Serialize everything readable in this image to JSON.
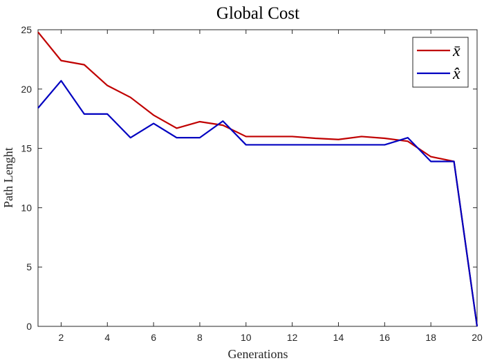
{
  "chart_data": {
    "type": "line",
    "title": "Global Cost",
    "xlabel": "Generations",
    "ylabel": "Path Lenght",
    "xlim": [
      1,
      20
    ],
    "ylim": [
      0,
      25
    ],
    "xticks": [
      2,
      4,
      6,
      8,
      10,
      12,
      14,
      16,
      18,
      20
    ],
    "yticks": [
      0,
      5,
      10,
      15,
      20,
      25
    ],
    "grid": false,
    "legend_position": "top-right",
    "x": [
      1,
      2,
      3,
      4,
      5,
      6,
      7,
      8,
      9,
      10,
      11,
      12,
      13,
      14,
      15,
      16,
      17,
      18,
      19,
      20
    ],
    "series": [
      {
        "name": "x̄",
        "color": "#c00000",
        "values": [
          24.8,
          22.4,
          22.05,
          20.3,
          19.3,
          17.8,
          16.7,
          17.25,
          16.95,
          16.0,
          16.0,
          16.0,
          15.85,
          15.75,
          16.0,
          15.85,
          15.6,
          14.3,
          13.9,
          0.0
        ]
      },
      {
        "name": "x̂",
        "color": "#0000c0",
        "values": [
          18.4,
          20.7,
          17.9,
          17.9,
          15.9,
          17.1,
          15.9,
          15.9,
          17.3,
          15.3,
          15.3,
          15.3,
          15.3,
          15.3,
          15.3,
          15.3,
          15.9,
          13.9,
          13.9,
          0.0
        ]
      }
    ]
  }
}
